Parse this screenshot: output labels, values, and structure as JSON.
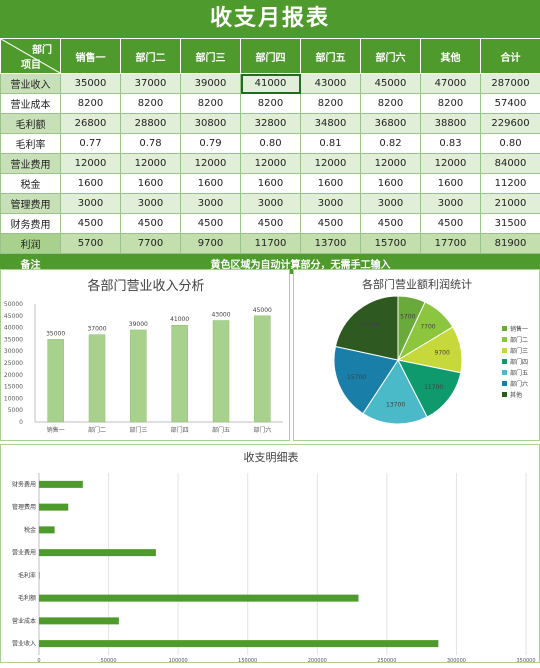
{
  "title": "收支月报表",
  "table": {
    "corner_top": "部门",
    "corner_bottom": "项目",
    "columns": [
      "销售一",
      "部门二",
      "部门三",
      "部门四",
      "部门五",
      "部门六",
      "其他",
      "合计"
    ],
    "rows": [
      {
        "label": "营业收入",
        "values": [
          "35000",
          "37000",
          "39000",
          "41000",
          "43000",
          "45000",
          "47000",
          "287000"
        ]
      },
      {
        "label": "营业成本",
        "values": [
          "8200",
          "8200",
          "8200",
          "8200",
          "8200",
          "8200",
          "8200",
          "57400"
        ]
      },
      {
        "label": "毛利额",
        "values": [
          "26800",
          "28800",
          "30800",
          "32800",
          "34800",
          "36800",
          "38800",
          "229600"
        ]
      },
      {
        "label": "毛利率",
        "values": [
          "0.77",
          "0.78",
          "0.79",
          "0.80",
          "0.81",
          "0.82",
          "0.83",
          "0.80"
        ]
      },
      {
        "label": "营业费用",
        "values": [
          "12000",
          "12000",
          "12000",
          "12000",
          "12000",
          "12000",
          "12000",
          "84000"
        ]
      },
      {
        "label": "税金",
        "values": [
          "1600",
          "1600",
          "1600",
          "1600",
          "1600",
          "1600",
          "1600",
          "11200"
        ]
      },
      {
        "label": "管理费用",
        "values": [
          "3000",
          "3000",
          "3000",
          "3000",
          "3000",
          "3000",
          "3000",
          "21000"
        ]
      },
      {
        "label": "财务费用",
        "values": [
          "4500",
          "4500",
          "4500",
          "4500",
          "4500",
          "4500",
          "4500",
          "31500"
        ]
      },
      {
        "label": "利润",
        "values": [
          "5700",
          "7700",
          "9700",
          "11700",
          "13700",
          "15700",
          "17700",
          "81900"
        ]
      }
    ],
    "note_label": "备注",
    "note_text": "黄色区域为自动计算部分，无需手工输入"
  },
  "chart_data": [
    {
      "type": "bar",
      "title": "各部门营业收入分析",
      "categories": [
        "销售一",
        "部门二",
        "部门三",
        "部门四",
        "部门五",
        "部门六"
      ],
      "values": [
        35000,
        37000,
        39000,
        41000,
        43000,
        45000
      ],
      "data_labels": [
        "35000",
        "37000",
        "39000",
        "41000",
        "43000",
        "45000"
      ],
      "ylim": [
        0,
        50000
      ],
      "yticks": [
        "0",
        "5000",
        "10000",
        "15000",
        "20000",
        "25000",
        "30000",
        "35000",
        "40000",
        "45000",
        "50000"
      ],
      "color": "#a9d18e",
      "grid": false
    },
    {
      "type": "pie",
      "title": "各部门营业额利润统计",
      "categories": [
        "销售一",
        "部门二",
        "部门三",
        "部门四",
        "部门五",
        "部门六",
        "其他"
      ],
      "values": [
        5700,
        7700,
        9700,
        11700,
        13700,
        15700,
        17700
      ],
      "data_labels": [
        "5700",
        "7700",
        "9700",
        "11700",
        "13700",
        "15700",
        "17700"
      ],
      "colors": [
        "#6aaa3a",
        "#8cc63f",
        "#c6d83a",
        "#0f9a6e",
        "#4ab9c8",
        "#1a7fa8",
        "#2e5a22"
      ],
      "legend": "right"
    },
    {
      "type": "bar",
      "orientation": "horizontal",
      "title": "收支明细表",
      "categories": [
        "营业收入",
        "营业成本",
        "毛利额",
        "毛利率",
        "营业费用",
        "税金",
        "管理费用",
        "财务费用"
      ],
      "values": [
        287000,
        57400,
        229600,
        0.8,
        84000,
        11200,
        21000,
        31500
      ],
      "xlim": [
        0,
        350000
      ],
      "xticks": [
        "0",
        "50000",
        "100000",
        "150000",
        "200000",
        "250000",
        "300000",
        "350000"
      ],
      "color": "#4f9a2c",
      "grid": true
    }
  ]
}
